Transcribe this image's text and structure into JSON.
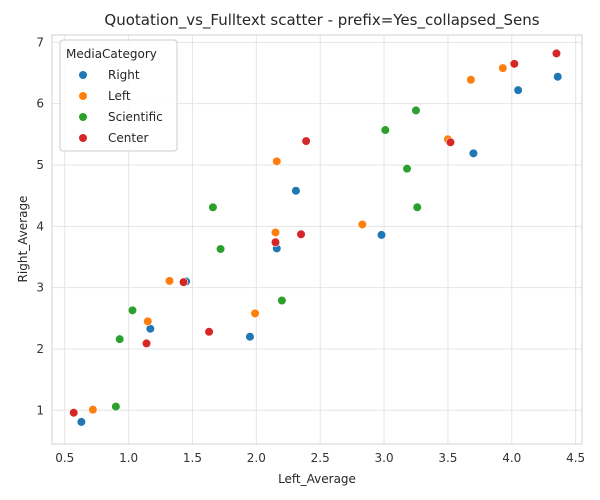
{
  "chart_data": {
    "type": "scatter",
    "title": "Quotation_vs_Fulltext scatter - prefix=Yes_collapsed_Sens",
    "xlabel": "Left_Average",
    "ylabel": "Right_Average",
    "xlim": [
      0.4,
      4.55
    ],
    "ylim": [
      0.45,
      7.12
    ],
    "xticks": [
      "0.5",
      "1.0",
      "1.5",
      "2.0",
      "2.5",
      "3.0",
      "3.5",
      "4.0",
      "4.5"
    ],
    "yticks": [
      "1",
      "2",
      "3",
      "4",
      "5",
      "6",
      "7"
    ],
    "grid": true,
    "legend": {
      "title": "MediaCategory",
      "placement": "top-left"
    },
    "series": [
      {
        "name": "Right",
        "color": "#1f77b4",
        "points": [
          [
            0.63,
            0.81
          ],
          [
            1.17,
            2.33
          ],
          [
            1.45,
            3.1
          ],
          [
            1.95,
            2.2
          ],
          [
            2.16,
            3.64
          ],
          [
            2.31,
            4.58
          ],
          [
            2.98,
            3.86
          ],
          [
            3.7,
            5.19
          ],
          [
            4.05,
            6.22
          ],
          [
            4.36,
            6.44
          ]
        ]
      },
      {
        "name": "Left",
        "color": "#ff7f0e",
        "points": [
          [
            0.72,
            1.01
          ],
          [
            1.15,
            2.45
          ],
          [
            1.32,
            3.11
          ],
          [
            1.99,
            2.58
          ],
          [
            2.15,
            3.9
          ],
          [
            2.16,
            5.06
          ],
          [
            2.83,
            4.03
          ],
          [
            3.5,
            5.42
          ],
          [
            3.68,
            6.39
          ],
          [
            3.93,
            6.58
          ]
        ]
      },
      {
        "name": "Scientific",
        "color": "#2ca02c",
        "points": [
          [
            0.9,
            1.06
          ],
          [
            0.93,
            2.16
          ],
          [
            1.03,
            2.63
          ],
          [
            1.66,
            4.31
          ],
          [
            1.72,
            3.63
          ],
          [
            2.2,
            2.79
          ],
          [
            3.01,
            5.57
          ],
          [
            3.18,
            4.94
          ],
          [
            3.25,
            5.89
          ],
          [
            3.26,
            4.31
          ]
        ]
      },
      {
        "name": "Center",
        "color": "#d62728",
        "points": [
          [
            0.57,
            0.96
          ],
          [
            1.14,
            2.09
          ],
          [
            1.43,
            3.09
          ],
          [
            1.63,
            2.28
          ],
          [
            2.15,
            3.74
          ],
          [
            2.35,
            3.87
          ],
          [
            2.39,
            5.39
          ],
          [
            3.52,
            5.37
          ],
          [
            4.02,
            6.65
          ],
          [
            4.35,
            6.82
          ]
        ]
      }
    ]
  }
}
